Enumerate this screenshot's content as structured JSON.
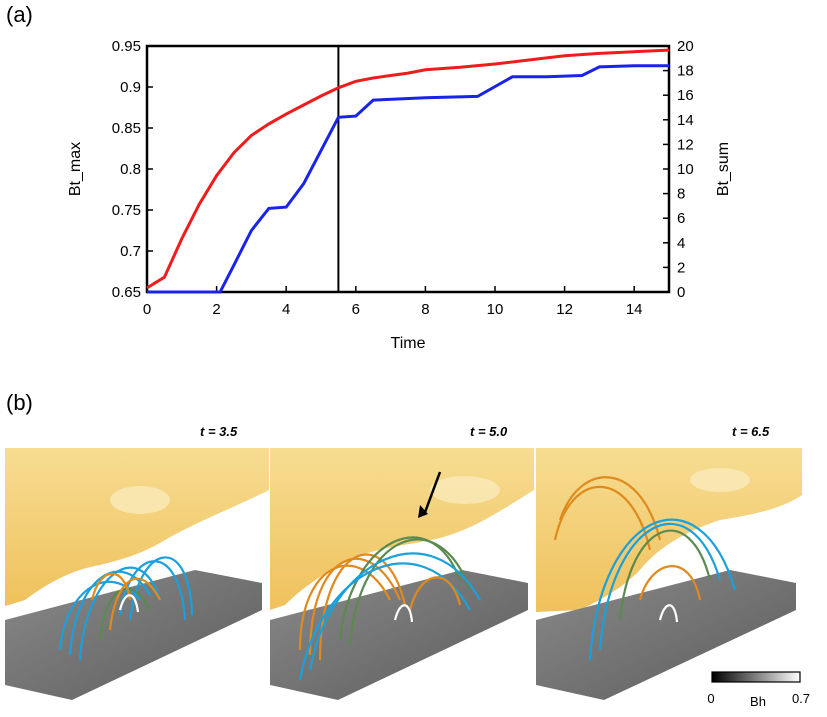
{
  "panel_a": {
    "label": "(a)"
  },
  "panel_b": {
    "label": "(b)",
    "snapshots": [
      {
        "time_label": "t = 3.5"
      },
      {
        "time_label": "t = 5.0"
      },
      {
        "time_label": "t = 6.5"
      }
    ],
    "colorbar": {
      "label": "Bh",
      "min_label": "0",
      "max_label": "0.7",
      "min": 0,
      "max": 0.7
    }
  },
  "colors": {
    "bt_max": "#ee1c1c",
    "bt_sum": "#1a23e8",
    "field_blue": "#1aa0dc",
    "field_orange": "#e08a1e",
    "field_green": "#5a8a50",
    "surface": "#f2c766"
  },
  "chart_data": {
    "type": "line",
    "title": "",
    "xlabel": "Time",
    "ylabel_left": "Bt_max",
    "ylabel_right": "Bt_sum",
    "xlim": [
      0,
      15
    ],
    "ylim_left": [
      0.65,
      0.95
    ],
    "ylim_right": [
      0,
      20
    ],
    "x_ticks": [
      "0",
      "2",
      "4",
      "6",
      "8",
      "10",
      "12",
      "14"
    ],
    "y_left_ticks": [
      "0.65",
      "0.7",
      "0.75",
      "0.8",
      "0.85",
      "0.9",
      "0.95"
    ],
    "y_right_ticks": [
      "0",
      "2",
      "4",
      "6",
      "8",
      "10",
      "12",
      "14",
      "16",
      "18",
      "20"
    ],
    "vline_x": 5.5,
    "series": [
      {
        "axis": "left",
        "x": [
          0,
          0.5,
          1,
          1.5,
          2,
          2.5,
          3,
          3.5,
          4,
          4.5,
          5,
          5.5,
          6,
          6.5,
          7,
          7.5,
          8,
          9,
          10,
          11,
          12,
          13,
          14,
          15
        ],
        "values": [
          0.655,
          0.668,
          0.715,
          0.757,
          0.792,
          0.82,
          0.841,
          0.855,
          0.867,
          0.878,
          0.889,
          0.899,
          0.907,
          0.911,
          0.914,
          0.917,
          0.921,
          0.924,
          0.928,
          0.933,
          0.938,
          0.941,
          0.943,
          0.945
        ]
      },
      {
        "axis": "right",
        "x": [
          0,
          2.1,
          2.5,
          3,
          3.5,
          4,
          4.5,
          5,
          5.5,
          6,
          6.5,
          8,
          9.5,
          10.5,
          11.5,
          12.5,
          13,
          14,
          15
        ],
        "values": [
          0,
          0,
          2.2,
          5,
          6.8,
          6.9,
          8.8,
          11.5,
          14.2,
          14.3,
          15.6,
          15.8,
          15.9,
          17.5,
          17.5,
          17.6,
          18.3,
          18.4,
          18.4
        ]
      }
    ]
  }
}
